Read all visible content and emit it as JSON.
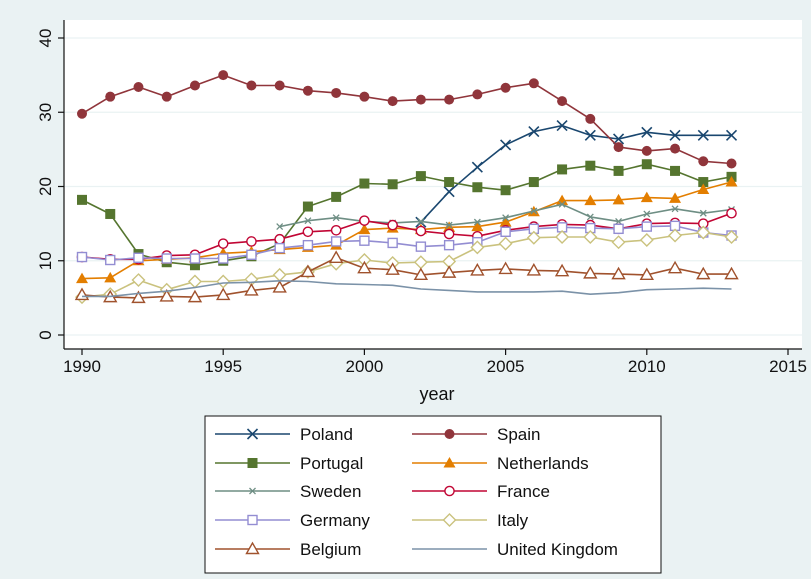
{
  "chart_data": {
    "type": "line",
    "xlabel": "year",
    "ylabel": "",
    "xlim": [
      1990,
      2015
    ],
    "ylim": [
      0,
      40
    ],
    "x_ticks": [
      1990,
      1995,
      2000,
      2005,
      2010,
      2015
    ],
    "y_ticks": [
      0,
      10,
      20,
      30,
      40
    ],
    "grid": true,
    "legend_position": "bottom",
    "x": [
      1990,
      1991,
      1992,
      1993,
      1994,
      1995,
      1996,
      1997,
      1998,
      1999,
      2000,
      2001,
      2002,
      2003,
      2004,
      2005,
      2006,
      2007,
      2008,
      2009,
      2010,
      2011,
      2012,
      2013
    ],
    "series": [
      {
        "name": "Poland",
        "color": "#1a476f",
        "marker": "x",
        "values": [
          null,
          null,
          null,
          null,
          null,
          null,
          null,
          null,
          null,
          null,
          null,
          null,
          15.2,
          19.3,
          22.6,
          25.6,
          27.4,
          28.2,
          26.9,
          26.4,
          27.3,
          26.9,
          26.9,
          26.9
        ]
      },
      {
        "name": "Spain",
        "color": "#90353b",
        "marker": "circle-filled",
        "values": [
          29.8,
          32.1,
          33.4,
          32.1,
          33.6,
          35.0,
          33.6,
          33.6,
          32.9,
          32.6,
          32.1,
          31.5,
          31.7,
          31.7,
          32.4,
          33.3,
          33.9,
          31.5,
          29.1,
          25.3,
          24.8,
          25.1,
          23.4,
          23.1
        ]
      },
      {
        "name": "Portugal",
        "color": "#55752f",
        "marker": "square-filled",
        "values": [
          18.2,
          16.3,
          10.9,
          9.8,
          9.4,
          10.0,
          10.6,
          12.3,
          17.3,
          18.6,
          20.4,
          20.3,
          21.4,
          20.6,
          19.9,
          19.5,
          20.6,
          22.3,
          22.8,
          22.1,
          23.0,
          22.1,
          20.6,
          21.3
        ]
      },
      {
        "name": "Netherlands",
        "color": "#e37e00",
        "marker": "triangle-filled",
        "values": [
          7.6,
          7.7,
          10.0,
          10.2,
          10.4,
          11.0,
          11.2,
          11.5,
          11.8,
          12.1,
          14.2,
          14.4,
          14.2,
          14.5,
          14.6,
          15.2,
          16.6,
          18.1,
          18.1,
          18.2,
          18.5,
          18.4,
          19.6,
          20.6
        ]
      },
      {
        "name": "Sweden",
        "color": "#6e8e84",
        "marker": "small-x",
        "values": [
          null,
          null,
          null,
          null,
          null,
          null,
          null,
          14.6,
          15.4,
          15.8,
          15.3,
          15.1,
          15.3,
          14.8,
          15.2,
          15.8,
          16.7,
          17.6,
          15.9,
          15.3,
          16.3,
          17.0,
          16.4,
          16.9
        ]
      },
      {
        "name": "France",
        "color": "#c10534",
        "marker": "circle-hollow",
        "values": [
          10.5,
          10.2,
          10.2,
          10.7,
          10.8,
          12.3,
          12.6,
          12.9,
          13.9,
          14.1,
          15.4,
          14.8,
          14.0,
          13.6,
          13.3,
          14.1,
          14.6,
          14.9,
          14.8,
          14.3,
          15.0,
          15.1,
          15.0,
          16.4
        ]
      },
      {
        "name": "Germany",
        "color": "#938dd2",
        "marker": "square-hollow",
        "values": [
          10.5,
          10.1,
          10.4,
          10.3,
          10.3,
          10.3,
          10.8,
          11.7,
          12.1,
          12.6,
          12.7,
          12.4,
          11.9,
          12.1,
          12.5,
          13.9,
          14.3,
          14.5,
          14.4,
          14.3,
          14.6,
          14.7,
          13.8,
          13.4
        ]
      },
      {
        "name": "Italy",
        "color": "#cac27e",
        "marker": "diamond-hollow",
        "values": [
          5.1,
          5.5,
          7.4,
          6.1,
          7.2,
          7.2,
          7.5,
          8.1,
          8.5,
          9.6,
          10.1,
          9.7,
          9.8,
          9.9,
          11.8,
          12.3,
          13.1,
          13.2,
          13.2,
          12.5,
          12.8,
          13.4,
          13.8,
          13.2
        ]
      },
      {
        "name": "Belgium",
        "color": "#a0522d",
        "marker": "triangle-hollow",
        "values": [
          5.4,
          5.1,
          5.0,
          5.2,
          5.1,
          5.4,
          6.0,
          6.4,
          8.5,
          10.4,
          9.0,
          8.8,
          8.1,
          8.4,
          8.7,
          8.9,
          8.7,
          8.6,
          8.3,
          8.2,
          8.1,
          9.0,
          8.2,
          8.2
        ]
      },
      {
        "name": "United Kingdom",
        "color": "#7b92a8",
        "marker": "none",
        "values": [
          5.2,
          5.2,
          5.6,
          5.9,
          6.4,
          7.0,
          7.1,
          7.3,
          7.2,
          6.9,
          6.8,
          6.7,
          6.2,
          6.0,
          5.8,
          5.8,
          5.8,
          5.9,
          5.5,
          5.7,
          6.1,
          6.2,
          6.3,
          6.2
        ]
      }
    ]
  }
}
